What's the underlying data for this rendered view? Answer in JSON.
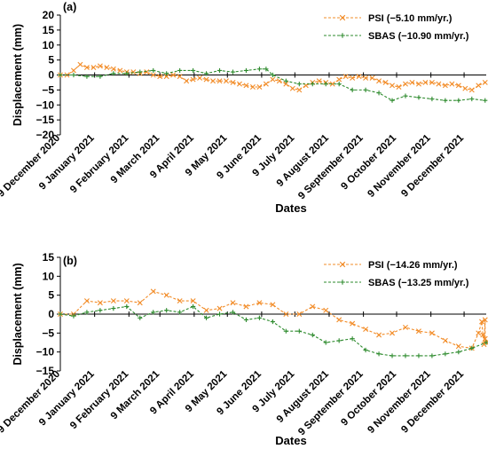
{
  "colors": {
    "psi": "#F28C28",
    "sbas": "#2E8B2E",
    "axis": "#000000"
  },
  "x_tick_labels": [
    "9 December 2020",
    "9 January 2021",
    "9 February 2021",
    "9 March 2021",
    "9 April 2021",
    "9 May 2021",
    "9 June 2021",
    "9 July 2021",
    "9 August 2021",
    "9 September 2021",
    "9 October 2021",
    "9 November 2021",
    "9 December 2021"
  ],
  "chart_data": [
    {
      "type": "line",
      "panel_label": "(a)",
      "xlabel": "Dates",
      "ylabel": "Displacement (mm)",
      "ylim": [
        -20,
        20
      ],
      "yticks": [
        -20,
        -15,
        -10,
        -5,
        0,
        5,
        10,
        15,
        20
      ],
      "xlim": [
        "2020-12-09",
        "2021-12-29"
      ],
      "legend_position": "top-right",
      "series": [
        {
          "name": "PSI (−5.10 mm/yr.)",
          "color": "#F28C28",
          "marker": "x",
          "dash": true,
          "points": [
            [
              "2020-12-09",
              0
            ],
            [
              "2020-12-15",
              0
            ],
            [
              "2020-12-21",
              1.5
            ],
            [
              "2020-12-27",
              3.5
            ],
            [
              "2021-01-02",
              2.5
            ],
            [
              "2021-01-08",
              2.5
            ],
            [
              "2021-01-14",
              3
            ],
            [
              "2021-01-20",
              2.5
            ],
            [
              "2021-01-26",
              2
            ],
            [
              "2021-02-01",
              1.5
            ],
            [
              "2021-02-07",
              1
            ],
            [
              "2021-02-13",
              1
            ],
            [
              "2021-02-19",
              0.5
            ],
            [
              "2021-02-25",
              1
            ],
            [
              "2021-03-03",
              0
            ],
            [
              "2021-03-09",
              -0.5
            ],
            [
              "2021-03-15",
              -0.5
            ],
            [
              "2021-03-21",
              0
            ],
            [
              "2021-03-27",
              -0.5
            ],
            [
              "2021-04-02",
              -2
            ],
            [
              "2021-04-08",
              -1.5
            ],
            [
              "2021-04-14",
              -1
            ],
            [
              "2021-04-20",
              -1.5
            ],
            [
              "2021-04-26",
              -2
            ],
            [
              "2021-05-02",
              -2
            ],
            [
              "2021-05-08",
              -2
            ],
            [
              "2021-05-14",
              -2.5
            ],
            [
              "2021-05-20",
              -3
            ],
            [
              "2021-05-26",
              -3.5
            ],
            [
              "2021-06-01",
              -4
            ],
            [
              "2021-06-07",
              -4
            ],
            [
              "2021-06-13",
              -3
            ],
            [
              "2021-06-19",
              -1.5
            ],
            [
              "2021-06-25",
              -2
            ],
            [
              "2021-07-01",
              -3
            ],
            [
              "2021-07-07",
              -4.5
            ],
            [
              "2021-07-13",
              -5
            ],
            [
              "2021-07-19",
              -3.5
            ],
            [
              "2021-07-25",
              -2.5
            ],
            [
              "2021-07-31",
              -2
            ],
            [
              "2021-08-06",
              -2.5
            ],
            [
              "2021-08-12",
              -3
            ],
            [
              "2021-08-18",
              -1.5
            ],
            [
              "2021-08-24",
              -0.5
            ],
            [
              "2021-08-30",
              -1
            ],
            [
              "2021-09-05",
              -0.5
            ],
            [
              "2021-09-11",
              -1
            ],
            [
              "2021-09-17",
              -1
            ],
            [
              "2021-09-23",
              -2
            ],
            [
              "2021-09-29",
              -2.5
            ],
            [
              "2021-10-05",
              -3.5
            ],
            [
              "2021-10-11",
              -4
            ],
            [
              "2021-10-17",
              -3
            ],
            [
              "2021-10-23",
              -2.5
            ],
            [
              "2021-10-29",
              -3
            ],
            [
              "2021-11-04",
              -2.5
            ],
            [
              "2021-11-10",
              -2.5
            ],
            [
              "2021-11-16",
              -3
            ],
            [
              "2021-11-22",
              -3.5
            ],
            [
              "2021-11-28",
              -3
            ],
            [
              "2021-12-04",
              -3.5
            ],
            [
              "2021-12-10",
              -4.5
            ],
            [
              "2021-12-16",
              -5
            ],
            [
              "2021-12-22",
              -3.5
            ],
            [
              "2021-12-28",
              -2.5
            ]
          ]
        },
        {
          "name": "SBAS (−10.90 mm/yr.)",
          "color": "#2E8B2E",
          "marker": "+",
          "dash": true,
          "points": [
            [
              "2020-12-09",
              0
            ],
            [
              "2020-12-21",
              0
            ],
            [
              "2021-01-02",
              -0.5
            ],
            [
              "2021-01-14",
              -0.5
            ],
            [
              "2021-01-26",
              0.5
            ],
            [
              "2021-02-07",
              0.5
            ],
            [
              "2021-02-19",
              1
            ],
            [
              "2021-03-03",
              1.5
            ],
            [
              "2021-03-15",
              0.5
            ],
            [
              "2021-03-27",
              1.5
            ],
            [
              "2021-04-08",
              1.5
            ],
            [
              "2021-04-20",
              0.5
            ],
            [
              "2021-05-02",
              1.5
            ],
            [
              "2021-05-14",
              1
            ],
            [
              "2021-05-26",
              1.5
            ],
            [
              "2021-06-07",
              2
            ],
            [
              "2021-06-13",
              2
            ],
            [
              "2021-06-19",
              0
            ],
            [
              "2021-07-01",
              -2
            ],
            [
              "2021-07-13",
              -3
            ],
            [
              "2021-07-25",
              -3
            ],
            [
              "2021-08-06",
              -3
            ],
            [
              "2021-08-18",
              -3
            ],
            [
              "2021-08-30",
              -5
            ],
            [
              "2021-09-11",
              -5
            ],
            [
              "2021-09-23",
              -6
            ],
            [
              "2021-10-05",
              -8.5
            ],
            [
              "2021-10-17",
              -7
            ],
            [
              "2021-10-29",
              -7.5
            ],
            [
              "2021-11-10",
              -8
            ],
            [
              "2021-11-22",
              -8.5
            ],
            [
              "2021-12-04",
              -8.5
            ],
            [
              "2021-12-16",
              -8
            ],
            [
              "2021-12-28",
              -8.5
            ]
          ]
        }
      ]
    },
    {
      "type": "line",
      "panel_label": "(b)",
      "xlabel": "Dates",
      "ylabel": "Displacement (mm)",
      "ylim": [
        -15,
        15
      ],
      "yticks": [
        -15,
        -10,
        -5,
        0,
        5,
        10,
        15
      ],
      "xlim": [
        "2020-12-09",
        "2021-12-29"
      ],
      "legend_position": "top-right",
      "series": [
        {
          "name": "PSI (−14.26 mm/yr.)",
          "color": "#F28C28",
          "marker": "x",
          "dash": true,
          "points": [
            [
              "2020-12-09",
              0
            ],
            [
              "2020-12-21",
              0
            ],
            [
              "2021-01-02",
              3.5
            ],
            [
              "2021-01-14",
              3
            ],
            [
              "2021-01-26",
              3.5
            ],
            [
              "2021-02-07",
              3.5
            ],
            [
              "2021-02-19",
              3
            ],
            [
              "2021-03-03",
              6
            ],
            [
              "2021-03-15",
              5
            ],
            [
              "2021-03-27",
              3.5
            ],
            [
              "2021-04-08",
              3.5
            ],
            [
              "2021-04-20",
              1
            ],
            [
              "2021-05-02",
              1.5
            ],
            [
              "2021-05-14",
              3
            ],
            [
              "2021-05-26",
              2
            ],
            [
              "2021-06-07",
              3
            ],
            [
              "2021-06-19",
              2.5
            ],
            [
              "2021-07-01",
              0
            ],
            [
              "2021-07-13",
              0
            ],
            [
              "2021-07-25",
              2
            ],
            [
              "2021-08-06",
              1
            ],
            [
              "2021-08-18",
              -1.5
            ],
            [
              "2021-08-30",
              -2.5
            ],
            [
              "2021-09-11",
              -4
            ],
            [
              "2021-09-23",
              -5.5
            ],
            [
              "2021-10-05",
              -5
            ],
            [
              "2021-10-17",
              -3.5
            ],
            [
              "2021-10-29",
              -4.5
            ],
            [
              "2021-11-10",
              -5
            ],
            [
              "2021-11-22",
              -7
            ],
            [
              "2021-12-04",
              -8.5
            ],
            [
              "2021-12-16",
              -9
            ],
            [
              "2021-12-22",
              -5
            ],
            [
              "2021-12-25",
              -2
            ],
            [
              "2021-12-26",
              -5.5
            ],
            [
              "2021-12-27",
              -8
            ],
            [
              "2021-12-28",
              -1.5
            ],
            [
              "2021-12-28",
              -6.5
            ],
            [
              "2021-12-29",
              -7.5
            ]
          ]
        },
        {
          "name": "SBAS (−13.25 mm/yr.)",
          "color": "#2E8B2E",
          "marker": "+",
          "dash": true,
          "points": [
            [
              "2020-12-09",
              0
            ],
            [
              "2020-12-21",
              -0.5
            ],
            [
              "2021-01-02",
              0.5
            ],
            [
              "2021-01-14",
              1
            ],
            [
              "2021-01-26",
              1.5
            ],
            [
              "2021-02-07",
              2
            ],
            [
              "2021-02-19",
              -1
            ],
            [
              "2021-03-03",
              0.5
            ],
            [
              "2021-03-15",
              1
            ],
            [
              "2021-03-27",
              0.5
            ],
            [
              "2021-04-08",
              2
            ],
            [
              "2021-04-20",
              -1
            ],
            [
              "2021-05-02",
              0
            ],
            [
              "2021-05-14",
              0.5
            ],
            [
              "2021-05-26",
              -1.5
            ],
            [
              "2021-06-07",
              -1
            ],
            [
              "2021-06-19",
              -2
            ],
            [
              "2021-07-01",
              -4.5
            ],
            [
              "2021-07-13",
              -4.5
            ],
            [
              "2021-07-25",
              -5.5
            ],
            [
              "2021-08-06",
              -7.5
            ],
            [
              "2021-08-18",
              -7
            ],
            [
              "2021-08-30",
              -6.5
            ],
            [
              "2021-09-11",
              -9.5
            ],
            [
              "2021-09-23",
              -10.5
            ],
            [
              "2021-10-05",
              -11
            ],
            [
              "2021-10-17",
              -11
            ],
            [
              "2021-10-29",
              -11
            ],
            [
              "2021-11-10",
              -11
            ],
            [
              "2021-11-22",
              -10.5
            ],
            [
              "2021-12-04",
              -10
            ],
            [
              "2021-12-16",
              -9
            ],
            [
              "2021-12-29",
              -7.5
            ]
          ]
        }
      ]
    }
  ]
}
